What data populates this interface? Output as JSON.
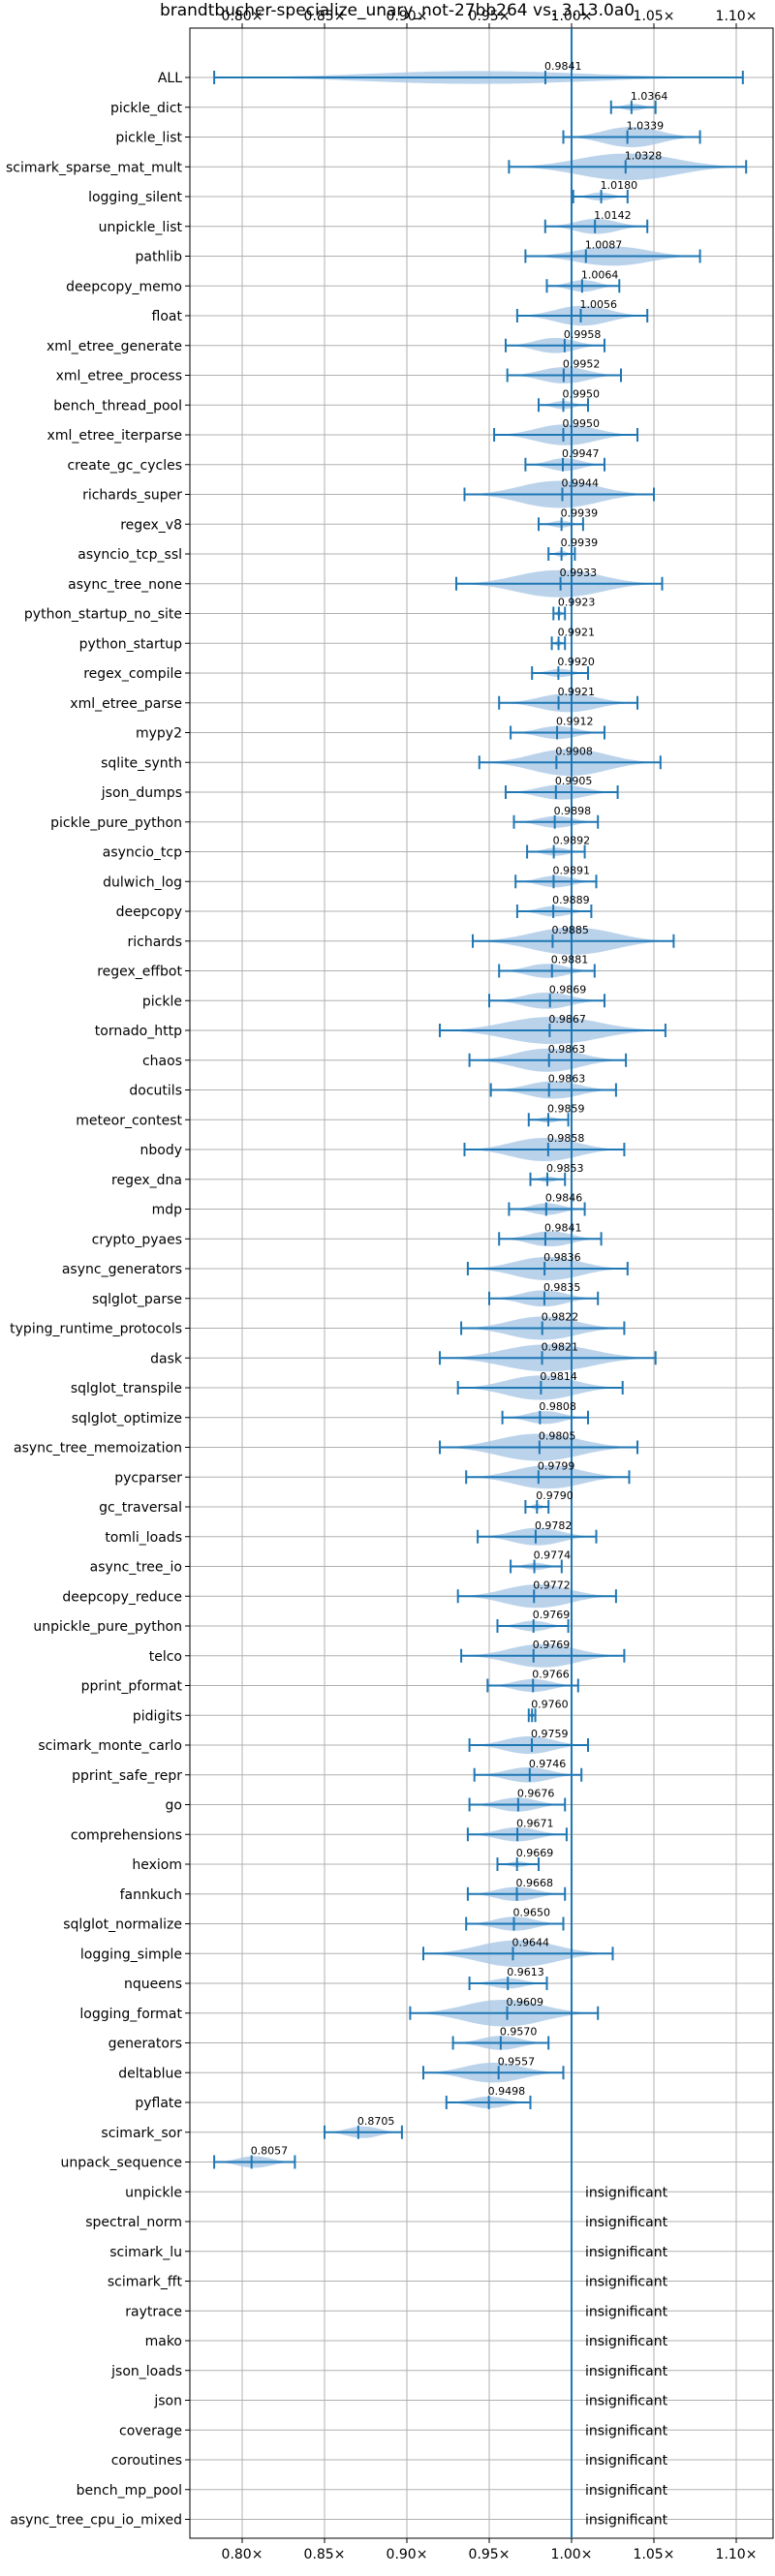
{
  "chart_data": {
    "type": "violin",
    "title": "brandtbucher-specialize_unary_not-27bb264 vs. 3.13.0a0",
    "xlim": [
      0.77,
      1.125
    ],
    "xticks": [
      0.8,
      0.85,
      0.9,
      0.95,
      1.0,
      1.05,
      1.1
    ],
    "xtick_labels": [
      "0.80×",
      "0.85×",
      "0.90×",
      "0.95×",
      "1.00×",
      "1.05×",
      "1.10×"
    ],
    "reference_line": 1.0,
    "grid": true,
    "violin_color": "#a9c8e6",
    "line_color": "#1f77b4",
    "benchmarks": [
      {
        "name": "ALL",
        "value": 0.9841,
        "label": "0.9841",
        "min": 0.783,
        "max": 1.104,
        "width": 0.022
      },
      {
        "name": "pickle_dict",
        "value": 1.0364,
        "label": "1.0364",
        "min": 1.024,
        "max": 1.051,
        "width": 0.012
      },
      {
        "name": "pickle_list",
        "value": 1.0339,
        "label": "1.0339",
        "min": 0.995,
        "max": 1.078,
        "width": 0.035
      },
      {
        "name": "scimark_sparse_mat_mult",
        "value": 1.0328,
        "label": "1.0328",
        "min": 0.962,
        "max": 1.106,
        "width": 0.046
      },
      {
        "name": "logging_silent",
        "value": 1.018,
        "label": "1.0180",
        "min": 1.001,
        "max": 1.034,
        "width": 0.014
      },
      {
        "name": "unpickle_list",
        "value": 1.0142,
        "label": "1.0142",
        "min": 0.984,
        "max": 1.046,
        "width": 0.026
      },
      {
        "name": "pathlib",
        "value": 1.0087,
        "label": "1.0087",
        "min": 0.972,
        "max": 1.078,
        "width": 0.033
      },
      {
        "name": "deepcopy_memo",
        "value": 1.0064,
        "label": "1.0064",
        "min": 0.985,
        "max": 1.029,
        "width": 0.02
      },
      {
        "name": "float",
        "value": 1.0056,
        "label": "1.0056",
        "min": 0.967,
        "max": 1.046,
        "width": 0.034
      },
      {
        "name": "xml_etree_generate",
        "value": 0.9958,
        "label": "0.9958",
        "min": 0.96,
        "max": 1.02,
        "width": 0.026
      },
      {
        "name": "xml_etree_process",
        "value": 0.9952,
        "label": "0.9952",
        "min": 0.961,
        "max": 1.03,
        "width": 0.028
      },
      {
        "name": "bench_thread_pool",
        "value": 0.995,
        "label": "0.9950",
        "min": 0.98,
        "max": 1.01,
        "width": 0.014
      },
      {
        "name": "xml_etree_iterparse",
        "value": 0.995,
        "label": "0.9950",
        "min": 0.953,
        "max": 1.04,
        "width": 0.036
      },
      {
        "name": "create_gc_cycles",
        "value": 0.9947,
        "label": "0.9947",
        "min": 0.972,
        "max": 1.02,
        "width": 0.022
      },
      {
        "name": "richards_super",
        "value": 0.9944,
        "label": "0.9944",
        "min": 0.935,
        "max": 1.05,
        "width": 0.048
      },
      {
        "name": "regex_v8",
        "value": 0.9939,
        "label": "0.9939",
        "min": 0.98,
        "max": 1.007,
        "width": 0.012
      },
      {
        "name": "asyncio_tcp_ssl",
        "value": 0.9939,
        "label": "0.9939",
        "min": 0.986,
        "max": 1.002,
        "width": 0.008
      },
      {
        "name": "async_tree_none",
        "value": 0.9933,
        "label": "0.9933",
        "min": 0.93,
        "max": 1.055,
        "width": 0.052
      },
      {
        "name": "python_startup_no_site",
        "value": 0.9923,
        "label": "0.9923",
        "min": 0.989,
        "max": 0.996,
        "width": 0.004
      },
      {
        "name": "python_startup",
        "value": 0.9921,
        "label": "0.9921",
        "min": 0.988,
        "max": 0.996,
        "width": 0.005
      },
      {
        "name": "regex_compile",
        "value": 0.992,
        "label": "0.9920",
        "min": 0.976,
        "max": 1.01,
        "width": 0.014
      },
      {
        "name": "xml_etree_parse",
        "value": 0.9921,
        "label": "0.9921",
        "min": 0.956,
        "max": 1.04,
        "width": 0.032
      },
      {
        "name": "mypy2",
        "value": 0.9912,
        "label": "0.9912",
        "min": 0.963,
        "max": 1.02,
        "width": 0.022
      },
      {
        "name": "sqlite_synth",
        "value": 0.9908,
        "label": "0.9908",
        "min": 0.944,
        "max": 1.054,
        "width": 0.046
      },
      {
        "name": "json_dumps",
        "value": 0.9905,
        "label": "0.9905",
        "min": 0.96,
        "max": 1.028,
        "width": 0.026
      },
      {
        "name": "pickle_pure_python",
        "value": 0.9898,
        "label": "0.9898",
        "min": 0.965,
        "max": 1.016,
        "width": 0.02
      },
      {
        "name": "asyncio_tcp",
        "value": 0.9892,
        "label": "0.9892",
        "min": 0.973,
        "max": 1.008,
        "width": 0.014
      },
      {
        "name": "dulwich_log",
        "value": 0.9891,
        "label": "0.9891",
        "min": 0.966,
        "max": 1.015,
        "width": 0.02
      },
      {
        "name": "deepcopy",
        "value": 0.9889,
        "label": "0.9889",
        "min": 0.967,
        "max": 1.012,
        "width": 0.018
      },
      {
        "name": "richards",
        "value": 0.9885,
        "label": "0.9885",
        "min": 0.94,
        "max": 1.062,
        "width": 0.05
      },
      {
        "name": "regex_effbot",
        "value": 0.9881,
        "label": "0.9881",
        "min": 0.956,
        "max": 1.014,
        "width": 0.024
      },
      {
        "name": "pickle",
        "value": 0.9869,
        "label": "0.9869",
        "min": 0.95,
        "max": 1.02,
        "width": 0.028
      },
      {
        "name": "tornado_http",
        "value": 0.9867,
        "label": "0.9867",
        "min": 0.92,
        "max": 1.057,
        "width": 0.055
      },
      {
        "name": "chaos",
        "value": 0.9863,
        "label": "0.9863",
        "min": 0.938,
        "max": 1.033,
        "width": 0.04
      },
      {
        "name": "docutils",
        "value": 0.9863,
        "label": "0.9863",
        "min": 0.951,
        "max": 1.027,
        "width": 0.03
      },
      {
        "name": "meteor_contest",
        "value": 0.9859,
        "label": "0.9859",
        "min": 0.974,
        "max": 0.998,
        "width": 0.01
      },
      {
        "name": "nbody",
        "value": 0.9858,
        "label": "0.9858",
        "min": 0.935,
        "max": 1.032,
        "width": 0.04
      },
      {
        "name": "regex_dna",
        "value": 0.9853,
        "label": "0.9853",
        "min": 0.975,
        "max": 0.996,
        "width": 0.008
      },
      {
        "name": "mdp",
        "value": 0.9846,
        "label": "0.9846",
        "min": 0.962,
        "max": 1.008,
        "width": 0.02
      },
      {
        "name": "crypto_pyaes",
        "value": 0.9841,
        "label": "0.9841",
        "min": 0.956,
        "max": 1.018,
        "width": 0.026
      },
      {
        "name": "async_generators",
        "value": 0.9836,
        "label": "0.9836",
        "min": 0.937,
        "max": 1.034,
        "width": 0.04
      },
      {
        "name": "sqlglot_parse",
        "value": 0.9835,
        "label": "0.9835",
        "min": 0.95,
        "max": 1.016,
        "width": 0.028
      },
      {
        "name": "typing_runtime_protocols",
        "value": 0.9822,
        "label": "0.9822",
        "min": 0.933,
        "max": 1.032,
        "width": 0.04
      },
      {
        "name": "dask",
        "value": 0.9821,
        "label": "0.9821",
        "min": 0.92,
        "max": 1.051,
        "width": 0.054
      },
      {
        "name": "sqlglot_transpile",
        "value": 0.9814,
        "label": "0.9814",
        "min": 0.931,
        "max": 1.031,
        "width": 0.042
      },
      {
        "name": "sqlglot_optimize",
        "value": 0.9808,
        "label": "0.9808",
        "min": 0.958,
        "max": 1.01,
        "width": 0.022
      },
      {
        "name": "async_tree_memoization",
        "value": 0.9805,
        "label": "0.9805",
        "min": 0.92,
        "max": 1.04,
        "width": 0.05
      },
      {
        "name": "pycparser",
        "value": 0.9799,
        "label": "0.9799",
        "min": 0.936,
        "max": 1.035,
        "width": 0.04
      },
      {
        "name": "gc_traversal",
        "value": 0.979,
        "label": "0.9790",
        "min": 0.972,
        "max": 0.986,
        "width": 0.008
      },
      {
        "name": "tomli_loads",
        "value": 0.9782,
        "label": "0.9782",
        "min": 0.943,
        "max": 1.015,
        "width": 0.03
      },
      {
        "name": "async_tree_io",
        "value": 0.9774,
        "label": "0.9774",
        "min": 0.963,
        "max": 0.994,
        "width": 0.012
      },
      {
        "name": "deepcopy_reduce",
        "value": 0.9772,
        "label": "0.9772",
        "min": 0.931,
        "max": 1.027,
        "width": 0.04
      },
      {
        "name": "unpickle_pure_python",
        "value": 0.9769,
        "label": "0.9769",
        "min": 0.955,
        "max": 0.998,
        "width": 0.018
      },
      {
        "name": "telco",
        "value": 0.9769,
        "label": "0.9769",
        "min": 0.933,
        "max": 1.032,
        "width": 0.04
      },
      {
        "name": "pprint_pformat",
        "value": 0.9766,
        "label": "0.9766",
        "min": 0.949,
        "max": 1.004,
        "width": 0.022
      },
      {
        "name": "pidigits",
        "value": 0.976,
        "label": "0.9760",
        "min": 0.974,
        "max": 0.978,
        "width": 0.003
      },
      {
        "name": "scimark_monte_carlo",
        "value": 0.9759,
        "label": "0.9759",
        "min": 0.938,
        "max": 1.01,
        "width": 0.03
      },
      {
        "name": "pprint_safe_repr",
        "value": 0.9746,
        "label": "0.9746",
        "min": 0.941,
        "max": 1.006,
        "width": 0.026
      },
      {
        "name": "go",
        "value": 0.9676,
        "label": "0.9676",
        "min": 0.938,
        "max": 0.996,
        "width": 0.024
      },
      {
        "name": "comprehensions",
        "value": 0.9671,
        "label": "0.9671",
        "min": 0.937,
        "max": 0.997,
        "width": 0.024
      },
      {
        "name": "hexiom",
        "value": 0.9669,
        "label": "0.9669",
        "min": 0.955,
        "max": 0.98,
        "width": 0.01
      },
      {
        "name": "fannkuch",
        "value": 0.9668,
        "label": "0.9668",
        "min": 0.937,
        "max": 0.996,
        "width": 0.024
      },
      {
        "name": "sqlglot_normalize",
        "value": 0.965,
        "label": "0.9650",
        "min": 0.936,
        "max": 0.995,
        "width": 0.024
      },
      {
        "name": "logging_simple",
        "value": 0.9644,
        "label": "0.9644",
        "min": 0.91,
        "max": 1.025,
        "width": 0.046
      },
      {
        "name": "nqueens",
        "value": 0.9613,
        "label": "0.9613",
        "min": 0.938,
        "max": 0.985,
        "width": 0.018
      },
      {
        "name": "logging_format",
        "value": 0.9609,
        "label": "0.9609",
        "min": 0.902,
        "max": 1.016,
        "width": 0.046
      },
      {
        "name": "generators",
        "value": 0.957,
        "label": "0.9570",
        "min": 0.928,
        "max": 0.986,
        "width": 0.024
      },
      {
        "name": "deltablue",
        "value": 0.9557,
        "label": "0.9557",
        "min": 0.91,
        "max": 0.995,
        "width": 0.034
      },
      {
        "name": "pyflate",
        "value": 0.9498,
        "label": "0.9498",
        "min": 0.924,
        "max": 0.975,
        "width": 0.02
      },
      {
        "name": "scimark_sor",
        "value": 0.8705,
        "label": "0.8705",
        "min": 0.85,
        "max": 0.897,
        "width": 0.02
      },
      {
        "name": "unpack_sequence",
        "value": 0.8057,
        "label": "0.8057",
        "min": 0.783,
        "max": 0.832,
        "width": 0.02
      },
      {
        "name": "unpickle",
        "insignificant": true
      },
      {
        "name": "spectral_norm",
        "insignificant": true
      },
      {
        "name": "scimark_lu",
        "insignificant": true
      },
      {
        "name": "scimark_fft",
        "insignificant": true
      },
      {
        "name": "raytrace",
        "insignificant": true
      },
      {
        "name": "mako",
        "insignificant": true
      },
      {
        "name": "json_loads",
        "insignificant": true
      },
      {
        "name": "json",
        "insignificant": true
      },
      {
        "name": "coverage",
        "insignificant": true
      },
      {
        "name": "coroutines",
        "insignificant": true
      },
      {
        "name": "bench_mp_pool",
        "insignificant": true
      },
      {
        "name": "async_tree_cpu_io_mixed",
        "insignificant": true
      }
    ],
    "insignificant_label": "insignificant"
  }
}
